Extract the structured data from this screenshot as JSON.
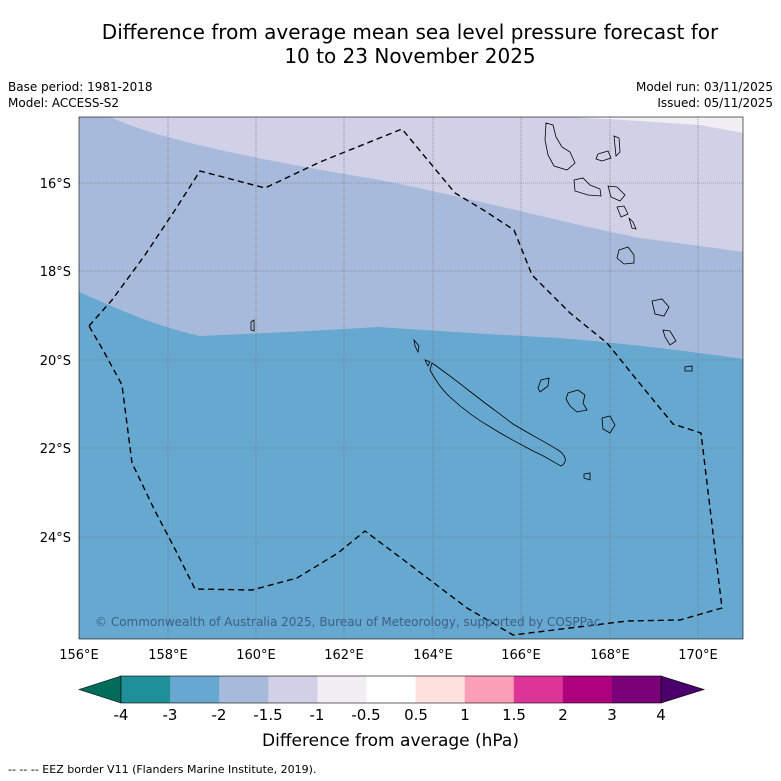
{
  "title": {
    "line1": "Difference from average mean sea level pressure forecast for",
    "line2": "10 to 23 November 2025"
  },
  "meta": {
    "base_period": "Base period: 1981-2018",
    "model": "Model: ACCESS-S2",
    "model_run": "Model run: 03/11/2025",
    "issued": "Issued: 05/11/2025"
  },
  "map": {
    "x_ticks": [
      "156°E",
      "158°E",
      "160°E",
      "162°E",
      "164°E",
      "166°E",
      "168°E",
      "170°E"
    ],
    "y_ticks": [
      "16°S",
      "18°S",
      "20°S",
      "22°S",
      "24°S"
    ],
    "copyright": "© Commonwealth of Australia 2025, Bureau of Meteorology, supported by COSPPac",
    "lon_range": [
      156,
      171
    ],
    "lat_range": [
      -26.2,
      -14.4
    ]
  },
  "colorbar": {
    "title": "Difference from average (hPa)",
    "labels": [
      "-4",
      "-3",
      "-2",
      "-1.5",
      "-1",
      "-0.5",
      "0.5",
      "1",
      "1.5",
      "2",
      "3",
      "4"
    ],
    "colors": [
      "#1f8f99",
      "#66a8cf",
      "#a7badb",
      "#d0d1e6",
      "#f2eef4",
      "#ffffff",
      "#fde0dd",
      "#fa9fb5",
      "#dd3497",
      "#ae017e",
      "#7a0177"
    ],
    "under_color": "#016c59",
    "over_color": "#49006a"
  },
  "legend": {
    "eez_label": "--  --  -- EEZ border V11 (Flanders Marine Institute, 2019)."
  }
}
